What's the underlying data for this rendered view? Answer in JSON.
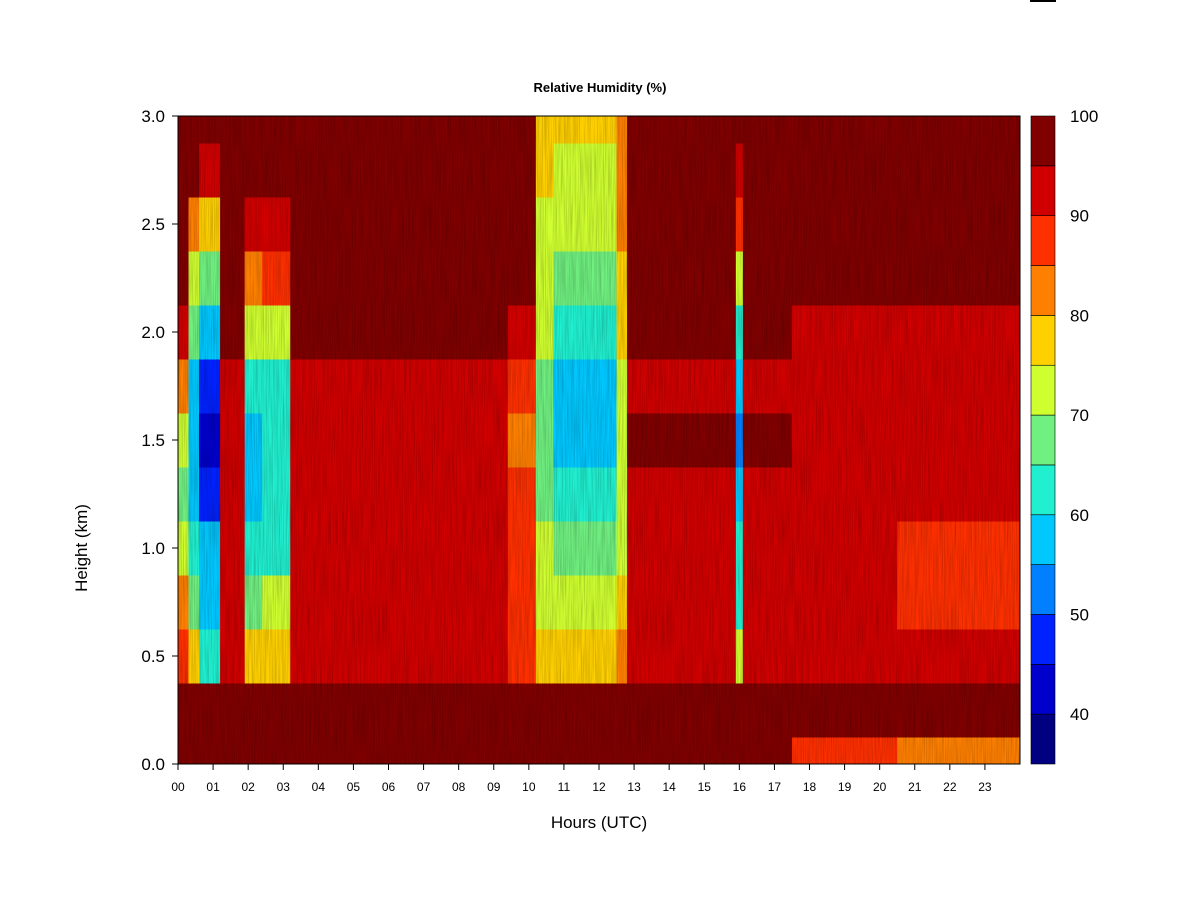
{
  "chart_data": {
    "type": "heatmap",
    "title": "Relative Humidity (%)",
    "xlabel": "Hours (UTC)",
    "ylabel": "Height (km)",
    "xlim": [
      0,
      24
    ],
    "ylim": [
      0.0,
      3.0
    ],
    "x_ticks": [
      "00",
      "01",
      "02",
      "03",
      "04",
      "05",
      "06",
      "07",
      "08",
      "09",
      "10",
      "11",
      "12",
      "13",
      "14",
      "15",
      "16",
      "17",
      "18",
      "19",
      "20",
      "21",
      "22",
      "23"
    ],
    "y_ticks": [
      "0.0",
      "0.5",
      "1.0",
      "1.5",
      "2.0",
      "2.5",
      "3.0"
    ],
    "colorbar": {
      "levels": [
        35,
        40,
        45,
        50,
        55,
        60,
        65,
        70,
        75,
        80,
        85,
        90,
        95,
        100
      ],
      "tick_labels": [
        "40",
        "50",
        "60",
        "70",
        "80",
        "90",
        "100"
      ],
      "colors": [
        "#000080",
        "#0000CD",
        "#0022FF",
        "#0080FF",
        "#00C8FF",
        "#20F0D0",
        "#70F080",
        "#D0FF30",
        "#FFD000",
        "#FF8000",
        "#FF3000",
        "#D00000",
        "#800000"
      ]
    },
    "height_levels_km": [
      0.0,
      0.25,
      0.5,
      0.75,
      1.0,
      1.25,
      1.5,
      1.75,
      2.0,
      2.25,
      2.5,
      2.75,
      3.0
    ],
    "columns": [
      {
        "from_hour": 0.0,
        "to_hour": 0.3,
        "values": [
          98,
          98,
          88,
          80,
          72,
          66,
          72,
          80,
          90,
          95,
          98,
          99,
          99
        ]
      },
      {
        "from_hour": 0.3,
        "to_hour": 0.6,
        "values": [
          98,
          97,
          75,
          68,
          62,
          58,
          55,
          58,
          68,
          72,
          80,
          95,
          98
        ]
      },
      {
        "from_hour": 0.6,
        "to_hour": 1.2,
        "values": [
          98,
          96,
          62,
          58,
          55,
          48,
          44,
          46,
          58,
          66,
          78,
          92,
          98
        ]
      },
      {
        "from_hour": 1.2,
        "to_hour": 1.9,
        "values": [
          99,
          99,
          93,
          92,
          90,
          91,
          90,
          92,
          96,
          99,
          99,
          99,
          99
        ]
      },
      {
        "from_hour": 1.9,
        "to_hour": 2.4,
        "values": [
          98,
          97,
          75,
          68,
          62,
          58,
          58,
          62,
          70,
          82,
          92,
          97,
          98
        ]
      },
      {
        "from_hour": 2.4,
        "to_hour": 3.2,
        "values": [
          98,
          97,
          78,
          70,
          64,
          60,
          60,
          62,
          70,
          85,
          94,
          98,
          99
        ]
      },
      {
        "from_hour": 3.2,
        "to_hour": 9.4,
        "values": [
          99,
          98,
          92,
          90,
          90,
          91,
          90,
          91,
          96,
          99,
          99,
          99,
          99
        ]
      },
      {
        "from_hour": 9.4,
        "to_hour": 10.2,
        "values": [
          99,
          98,
          88,
          86,
          86,
          86,
          84,
          86,
          94,
          98,
          99,
          99,
          99
        ]
      },
      {
        "from_hour": 10.2,
        "to_hour": 10.7,
        "values": [
          99,
          97,
          78,
          74,
          70,
          68,
          66,
          68,
          72,
          74,
          74,
          76,
          78
        ]
      },
      {
        "from_hour": 10.7,
        "to_hour": 12.5,
        "values": [
          99,
          96,
          76,
          72,
          65,
          60,
          57,
          58,
          62,
          66,
          70,
          74,
          76
        ]
      },
      {
        "from_hour": 12.5,
        "to_hour": 12.8,
        "values": [
          99,
          97,
          80,
          76,
          74,
          72,
          72,
          74,
          76,
          78,
          80,
          82,
          84
        ]
      },
      {
        "from_hour": 12.8,
        "to_hour": 15.9,
        "values": [
          97,
          98,
          93,
          92,
          92,
          94,
          96,
          94,
          97,
          99,
          99,
          99,
          99
        ]
      },
      {
        "from_hour": 15.9,
        "to_hour": 16.1,
        "values": [
          96,
          98,
          70,
          64,
          60,
          56,
          54,
          58,
          64,
          74,
          86,
          92,
          96
        ]
      },
      {
        "from_hour": 16.1,
        "to_hour": 17.5,
        "values": [
          96,
          98,
          93,
          92,
          92,
          94,
          96,
          93,
          97,
          99,
          99,
          99,
          99
        ]
      },
      {
        "from_hour": 17.5,
        "to_hour": 20.5,
        "values": [
          88,
          97,
          92,
          90,
          90,
          92,
          94,
          91,
          92,
          99,
          99,
          99,
          99
        ]
      },
      {
        "from_hour": 20.5,
        "to_hour": 24.0,
        "values": [
          84,
          96,
          91,
          89,
          89,
          91,
          93,
          90,
          91,
          98,
          99,
          99,
          99
        ]
      }
    ]
  }
}
